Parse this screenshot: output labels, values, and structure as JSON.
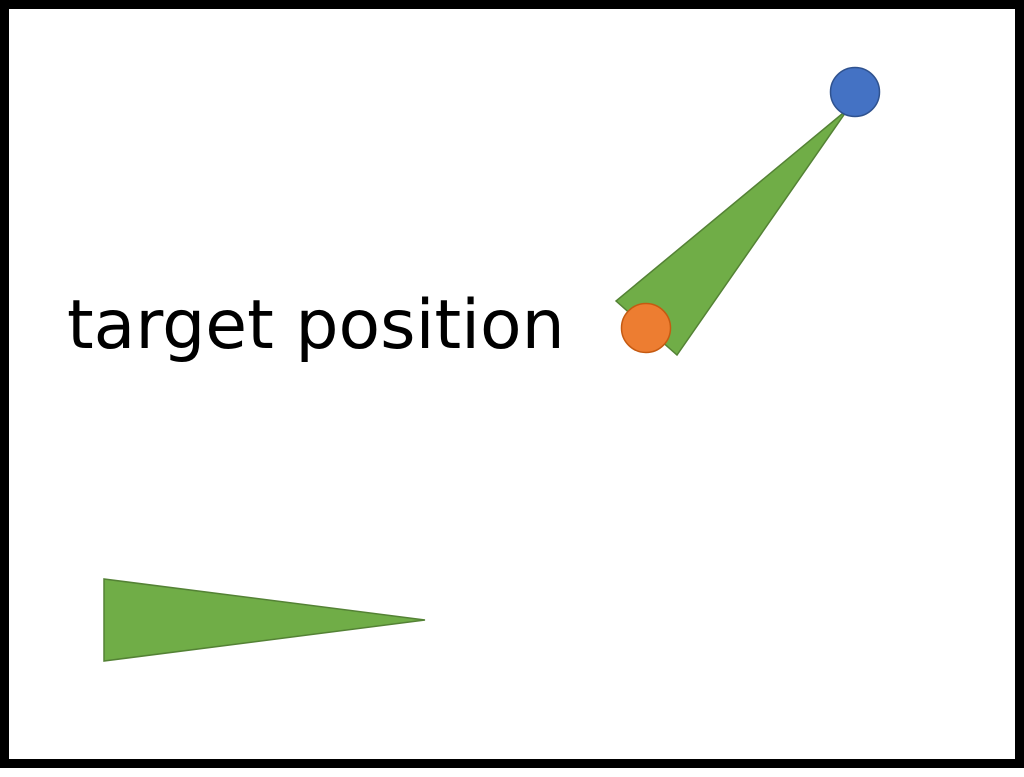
{
  "diagram": {
    "target_label": "target position",
    "colors": {
      "frame": "#000000",
      "background": "#ffffff",
      "arm_fill": "#70ad47",
      "arm_stroke": "#548235",
      "end_effector_fill": "#4472c4",
      "end_effector_stroke": "#2f528f",
      "target_fill": "#ed7d31",
      "target_stroke": "#c55a11"
    }
  }
}
